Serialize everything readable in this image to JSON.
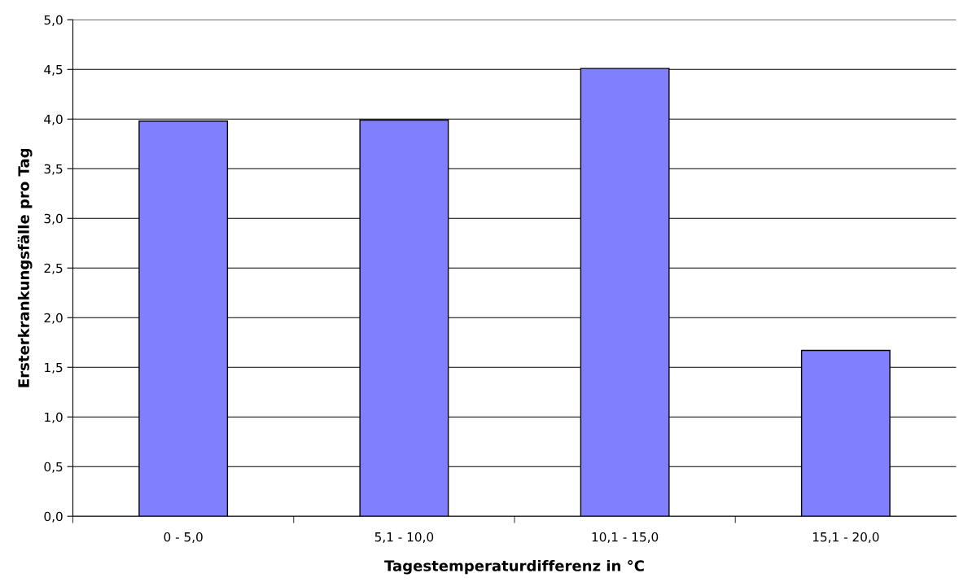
{
  "chart_data": {
    "type": "bar",
    "xlabel": "Tagestemperaturdifferenz in °C",
    "ylabel": "Ersterkrankungsfälle pro Tag",
    "categories": [
      "0 - 5,0",
      "5,1 - 10,0",
      "10,1 - 15,0",
      "15,1 - 20,0"
    ],
    "values": [
      3.98,
      3.99,
      4.51,
      1.67
    ],
    "color": "#8080ff",
    "ylim": [
      0,
      5
    ],
    "yticks": [
      {
        "value": 0,
        "label": "0,0"
      },
      {
        "value": 0.5,
        "label": "0,5"
      },
      {
        "value": 1,
        "label": "1,0"
      },
      {
        "value": 1.5,
        "label": "1,5"
      },
      {
        "value": 2,
        "label": "2,0"
      },
      {
        "value": 2.5,
        "label": "2,5"
      },
      {
        "value": 3,
        "label": "3,0"
      },
      {
        "value": 3.5,
        "label": "3,5"
      },
      {
        "value": 4,
        "label": "4,0"
      },
      {
        "value": 4.5,
        "label": "4,5"
      },
      {
        "value": 5,
        "label": "5,0"
      }
    ],
    "grid": "y"
  }
}
